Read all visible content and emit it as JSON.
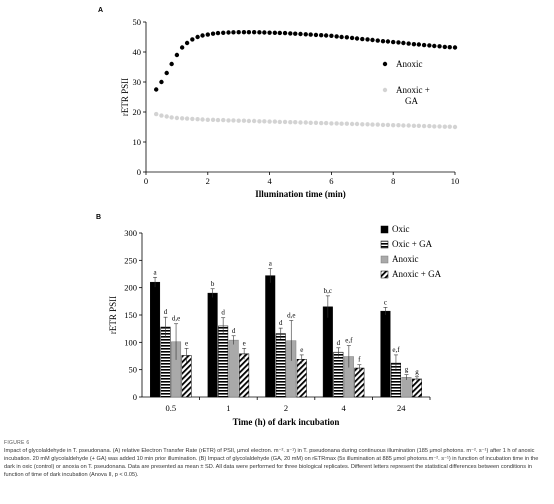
{
  "panel_labels": {
    "a": "A",
    "b": "B"
  },
  "chart_data": [
    {
      "type": "scatter",
      "panel": "A",
      "xlabel": "Illumination time (min)",
      "ylabel": "rETR PSII",
      "xlim": [
        0,
        10
      ],
      "ylim": [
        0,
        50
      ],
      "x_ticks": [
        "0",
        "2",
        "4",
        "6",
        "8",
        "10"
      ],
      "y_ticks": [
        "0",
        "10",
        "20",
        "30",
        "40",
        "50"
      ],
      "legend_position": "right",
      "grid": false,
      "series": [
        {
          "name": "Anoxic",
          "color": "#000000",
          "points": [
            [
              0.33,
              27.5
            ],
            [
              0.5,
              30
            ],
            [
              0.67,
              33
            ],
            [
              0.83,
              36
            ],
            [
              1.0,
              39
            ],
            [
              1.17,
              41.5
            ],
            [
              1.33,
              43
            ],
            [
              1.5,
              44.2
            ],
            [
              1.67,
              45
            ],
            [
              1.83,
              45.5
            ],
            [
              2.0,
              45.8
            ],
            [
              2.17,
              46.1
            ],
            [
              2.33,
              46.3
            ],
            [
              2.5,
              46.4
            ],
            [
              2.67,
              46.5
            ],
            [
              2.83,
              46.55
            ],
            [
              3.0,
              46.6
            ],
            [
              3.17,
              46.6
            ],
            [
              3.33,
              46.6
            ],
            [
              3.5,
              46.6
            ],
            [
              3.67,
              46.55
            ],
            [
              3.83,
              46.5
            ],
            [
              4.0,
              46.45
            ],
            [
              4.17,
              46.4
            ],
            [
              4.33,
              46.35
            ],
            [
              4.5,
              46.3
            ],
            [
              4.67,
              46.2
            ],
            [
              4.83,
              46.1
            ],
            [
              5.0,
              46.0
            ],
            [
              5.17,
              45.9
            ],
            [
              5.33,
              45.8
            ],
            [
              5.5,
              45.7
            ],
            [
              5.67,
              45.6
            ],
            [
              5.83,
              45.5
            ],
            [
              6.0,
              45.4
            ],
            [
              6.17,
              45.2
            ],
            [
              6.33,
              45.0
            ],
            [
              6.5,
              44.9
            ],
            [
              6.67,
              44.7
            ],
            [
              6.83,
              44.5
            ],
            [
              7.0,
              44.3
            ],
            [
              7.17,
              44.2
            ],
            [
              7.33,
              44.0
            ],
            [
              7.5,
              43.8
            ],
            [
              7.67,
              43.6
            ],
            [
              7.83,
              43.5
            ],
            [
              8.0,
              43.3
            ],
            [
              8.17,
              43.2
            ],
            [
              8.33,
              43.0
            ],
            [
              8.5,
              42.8
            ],
            [
              8.67,
              42.6
            ],
            [
              8.83,
              42.5
            ],
            [
              9.0,
              42.3
            ],
            [
              9.17,
              42.2
            ],
            [
              9.33,
              42.0
            ],
            [
              9.5,
              41.9
            ],
            [
              9.67,
              41.7
            ],
            [
              9.83,
              41.6
            ],
            [
              10.0,
              41.5
            ]
          ]
        },
        {
          "name": "Anoxic +\nGA",
          "color": "#d3d3d3",
          "points": [
            [
              0.33,
              19.3
            ],
            [
              0.5,
              18.8
            ],
            [
              0.67,
              18.5
            ],
            [
              0.83,
              18.2
            ],
            [
              1.0,
              18.0
            ],
            [
              1.17,
              17.9
            ],
            [
              1.33,
              17.8
            ],
            [
              1.5,
              17.7
            ],
            [
              1.67,
              17.6
            ],
            [
              1.83,
              17.5
            ],
            [
              2.0,
              17.4
            ],
            [
              2.17,
              17.4
            ],
            [
              2.33,
              17.3
            ],
            [
              2.5,
              17.3
            ],
            [
              2.67,
              17.2
            ],
            [
              2.83,
              17.2
            ],
            [
              3.0,
              17.1
            ],
            [
              3.17,
              17.1
            ],
            [
              3.33,
              17.0
            ],
            [
              3.5,
              17.0
            ],
            [
              3.67,
              16.9
            ],
            [
              3.83,
              16.9
            ],
            [
              4.0,
              16.8
            ],
            [
              4.17,
              16.8
            ],
            [
              4.33,
              16.7
            ],
            [
              4.5,
              16.7
            ],
            [
              4.67,
              16.6
            ],
            [
              4.83,
              16.6
            ],
            [
              5.0,
              16.5
            ],
            [
              5.17,
              16.5
            ],
            [
              5.33,
              16.4
            ],
            [
              5.5,
              16.4
            ],
            [
              5.67,
              16.3
            ],
            [
              5.83,
              16.3
            ],
            [
              6.0,
              16.2
            ],
            [
              6.17,
              16.2
            ],
            [
              6.33,
              16.1
            ],
            [
              6.5,
              16.1
            ],
            [
              6.67,
              16.0
            ],
            [
              6.83,
              16.0
            ],
            [
              7.0,
              15.9
            ],
            [
              7.17,
              15.9
            ],
            [
              7.33,
              15.8
            ],
            [
              7.5,
              15.8
            ],
            [
              7.67,
              15.7
            ],
            [
              7.83,
              15.7
            ],
            [
              8.0,
              15.6
            ],
            [
              8.17,
              15.6
            ],
            [
              8.33,
              15.5
            ],
            [
              8.5,
              15.5
            ],
            [
              8.67,
              15.4
            ],
            [
              8.83,
              15.4
            ],
            [
              9.0,
              15.3
            ],
            [
              9.17,
              15.3
            ],
            [
              9.33,
              15.2
            ],
            [
              9.5,
              15.2
            ],
            [
              9.67,
              15.1
            ],
            [
              9.83,
              15.1
            ],
            [
              10.0,
              15.0
            ]
          ]
        }
      ]
    },
    {
      "type": "bar",
      "panel": "B",
      "xlabel": "Time (h) of dark incubation",
      "ylabel": "rETR PSII",
      "ylim": [
        0,
        300
      ],
      "y_ticks": [
        "0",
        "50",
        "100",
        "150",
        "200",
        "250",
        "300"
      ],
      "categories": [
        "0.5",
        "1",
        "2",
        "4",
        "24"
      ],
      "legend_position": "top-right",
      "grid": false,
      "series": [
        {
          "name": "Oxic",
          "pattern": "solid-black",
          "values": [
            210,
            190,
            222,
            165,
            157
          ],
          "errors": [
            9,
            8,
            13,
            20,
            7
          ],
          "letters": [
            "a",
            "b",
            "a",
            "b,c",
            "c"
          ]
        },
        {
          "name": "Oxic + GA",
          "pattern": "horizontal-stripes",
          "values": [
            128,
            130,
            116,
            82,
            62
          ],
          "errors": [
            18,
            15,
            10,
            8,
            15
          ],
          "letters": [
            "d",
            "d",
            "d",
            "d",
            "e,f"
          ]
        },
        {
          "name": "Anoxic",
          "pattern": "solid-gray",
          "values": [
            101,
            104,
            103,
            74,
            36
          ],
          "errors": [
            33,
            8,
            37,
            20,
            5
          ],
          "letters": [
            "d,e",
            "d",
            "d,e",
            "e,f",
            "g"
          ]
        },
        {
          "name": "Anoxic + GA",
          "pattern": "diagonal-stripes",
          "values": [
            76,
            79,
            69,
            53,
            33
          ],
          "errors": [
            13,
            10,
            8,
            6,
            4
          ],
          "letters": [
            "e",
            "e",
            "e",
            "f",
            "g"
          ]
        }
      ]
    }
  ],
  "caption": {
    "label": "FIGURE 6",
    "text": "Impact of glycolaldehyde in T. pseudonana. (A) relative Electron Transfer Rate (rETR) of PSII, μmol electron. m⁻². s⁻¹) in T. pseudonana during continuous illumination (185 μmol photons. m⁻². s⁻¹) after 1 h of anoxic incubation. 20 mM glycolaldehyde (+ GA) was added 10 min prior illumination. (B) Impact of glycolaldehyde (GA, 20 mM) on rETRmax (5s illumination at 885 μmol photons.m⁻². s⁻¹) in function of incubation time in the dark in oxic (control) or anoxia on T. pseudonana. Data are presented as mean ± SD. All data were performed for three biological replicates. Different letters represent the statistical differences between conditions in function of time of dark incubation (Anova II, p < 0.05)."
  }
}
